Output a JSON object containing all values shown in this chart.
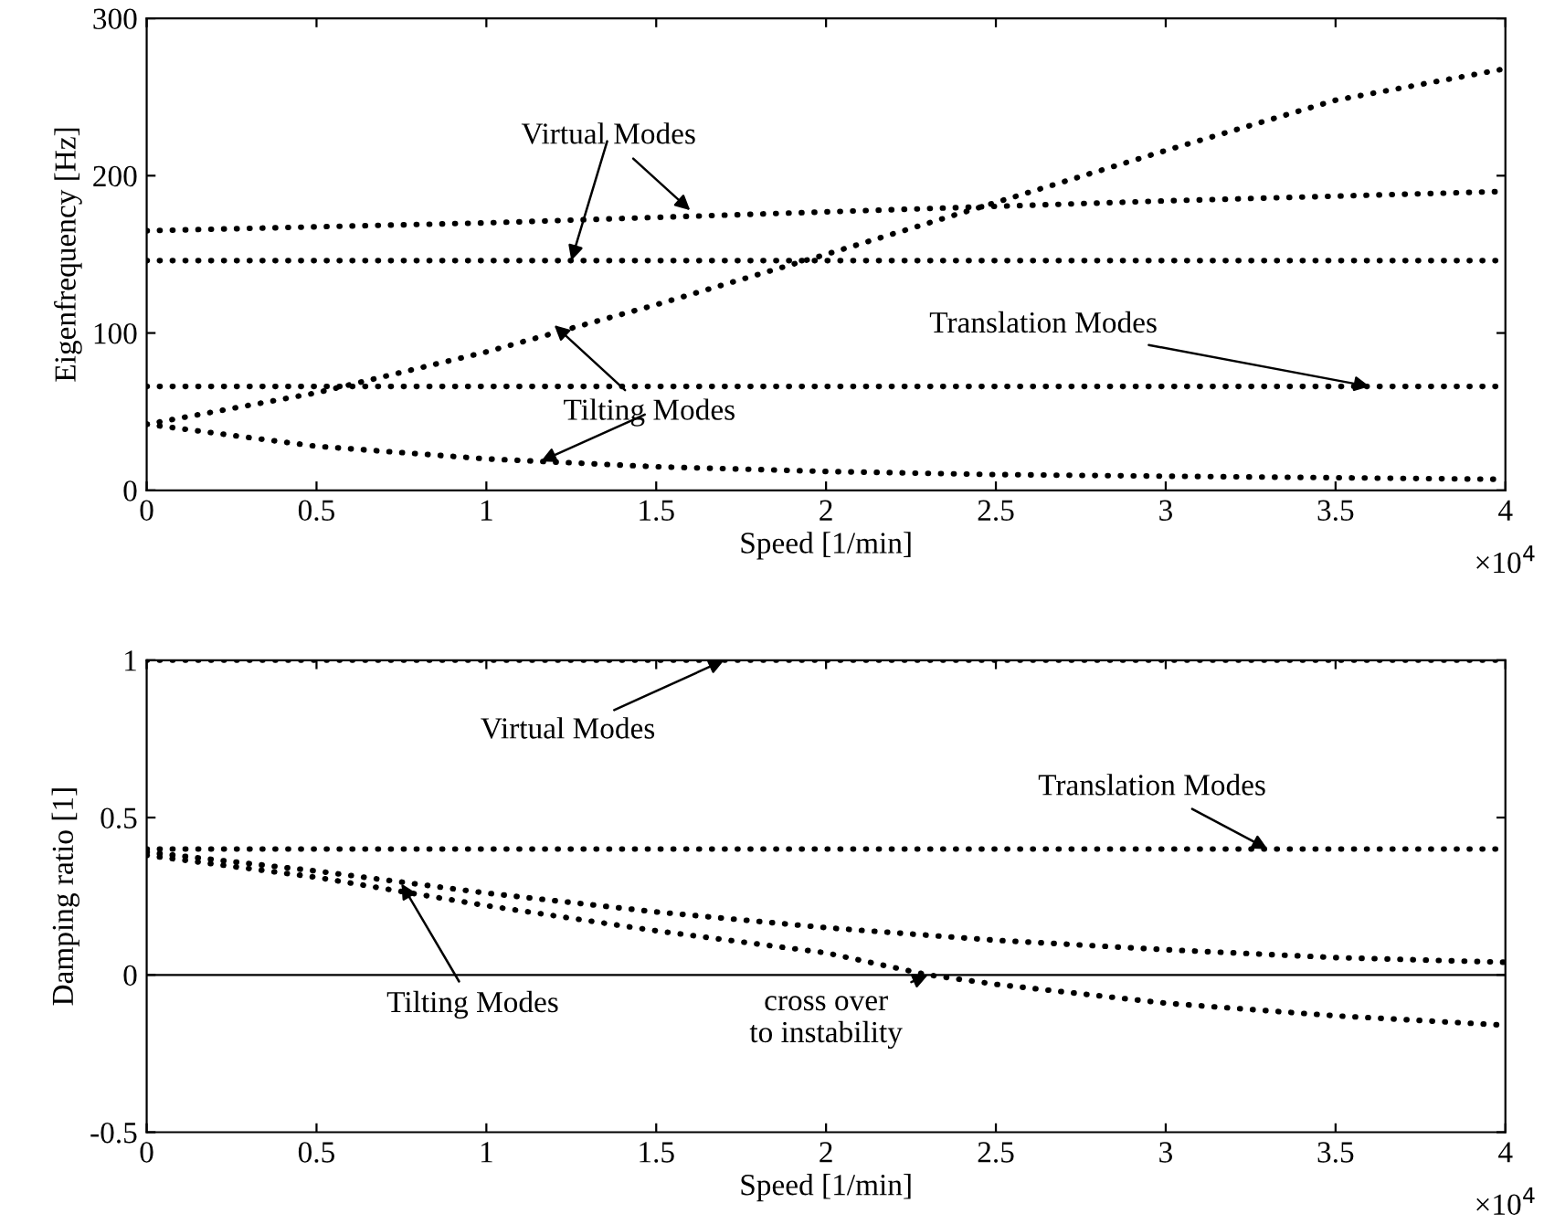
{
  "chart_data": [
    {
      "type": "line",
      "xlabel": "Speed [1/min]",
      "ylabel": "Eigenfrequency [Hz]",
      "xlim": [
        0,
        4
      ],
      "ylim": [
        0,
        300
      ],
      "xticks": [
        0,
        0.5,
        1,
        1.5,
        2,
        2.5,
        3,
        3.5,
        4
      ],
      "yticks": [
        0,
        100,
        200,
        300
      ],
      "grid": false,
      "line_style": "dotted",
      "marker": "none",
      "series": [
        {
          "color": "#000000",
          "x": [
            0,
            1,
            2,
            3,
            4
          ],
          "values": [
            165,
            170,
            177,
            184,
            190
          ]
        },
        {
          "color": "#000000",
          "x": [
            0,
            4
          ],
          "values": [
            146,
            146
          ]
        },
        {
          "color": "#000000",
          "x": [
            0,
            0.5,
            1,
            1.5,
            2,
            2.5,
            3,
            3.5,
            4
          ],
          "values": [
            42,
            62,
            88,
            118,
            150,
            183,
            216,
            248,
            268
          ]
        },
        {
          "color": "#000000",
          "x": [
            0,
            4
          ],
          "values": [
            66,
            66
          ]
        },
        {
          "color": "#000000",
          "x": [
            0,
            0.5,
            1,
            1.5,
            2,
            2.5,
            3,
            3.5,
            4
          ],
          "values": [
            42,
            28,
            20,
            15,
            12,
            10,
            9,
            8,
            7
          ]
        }
      ],
      "annotations": [
        {
          "text": "Virtual Modes",
          "x": 1.6,
          "y": 178
        },
        {
          "text": "Tilting Modes",
          "x": 1.2,
          "y": 105
        },
        {
          "text": "Translation Modes",
          "x": 3.6,
          "y": 66
        },
        "×10$^{4}$"
      ]
    },
    {
      "type": "line",
      "xlabel": "Speed [1/min]",
      "ylabel": "Damping ratio [1]",
      "xlim": [
        0,
        4
      ],
      "ylim": [
        -0.5,
        1
      ],
      "xticks": [
        0,
        0.5,
        1,
        1.5,
        2,
        2.5,
        3,
        3.5,
        4
      ],
      "yticks": [
        {
          "value": -0.5,
          "label": "-0.5"
        },
        0,
        0.5,
        1
      ],
      "grid": false,
      "line_style": "dotted",
      "marker": "none",
      "ref_lines": [
        {
          "axis": "y",
          "value": 0,
          "color": "#000000",
          "line_style": "solid"
        }
      ],
      "series": [
        {
          "color": "#000000",
          "x": [
            0,
            4
          ],
          "values": [
            1,
            1
          ]
        },
        {
          "color": "#000000",
          "x": [
            0,
            4
          ],
          "values": [
            0.4,
            0.4
          ]
        },
        {
          "color": "#000000",
          "x": [
            0,
            0.5,
            1,
            1.5,
            2,
            2.5,
            3,
            3.5,
            4
          ],
          "values": [
            0.39,
            0.33,
            0.26,
            0.2,
            0.15,
            0.11,
            0.08,
            0.055,
            0.04
          ]
        },
        {
          "color": "#000000",
          "x": [
            0,
            0.5,
            1,
            1.5,
            2,
            2.3,
            2.5,
            3,
            3.5,
            4
          ],
          "values": [
            0.38,
            0.31,
            0.22,
            0.14,
            0.07,
            0,
            -0.03,
            -0.09,
            -0.13,
            -0.16
          ]
        }
      ],
      "annotations": [
        {
          "text": "Virtual Modes",
          "x": 1.7,
          "y": 1
        },
        {
          "text": "Translation Modes",
          "x": 3.3,
          "y": 0.4
        },
        {
          "text": "Tilting Modes",
          "x": 0.75,
          "y": 0.29
        },
        {
          "text": "cross over\nto instability",
          "x": 2.3,
          "y": 0
        },
        "×10$^{4}$"
      ]
    }
  ]
}
